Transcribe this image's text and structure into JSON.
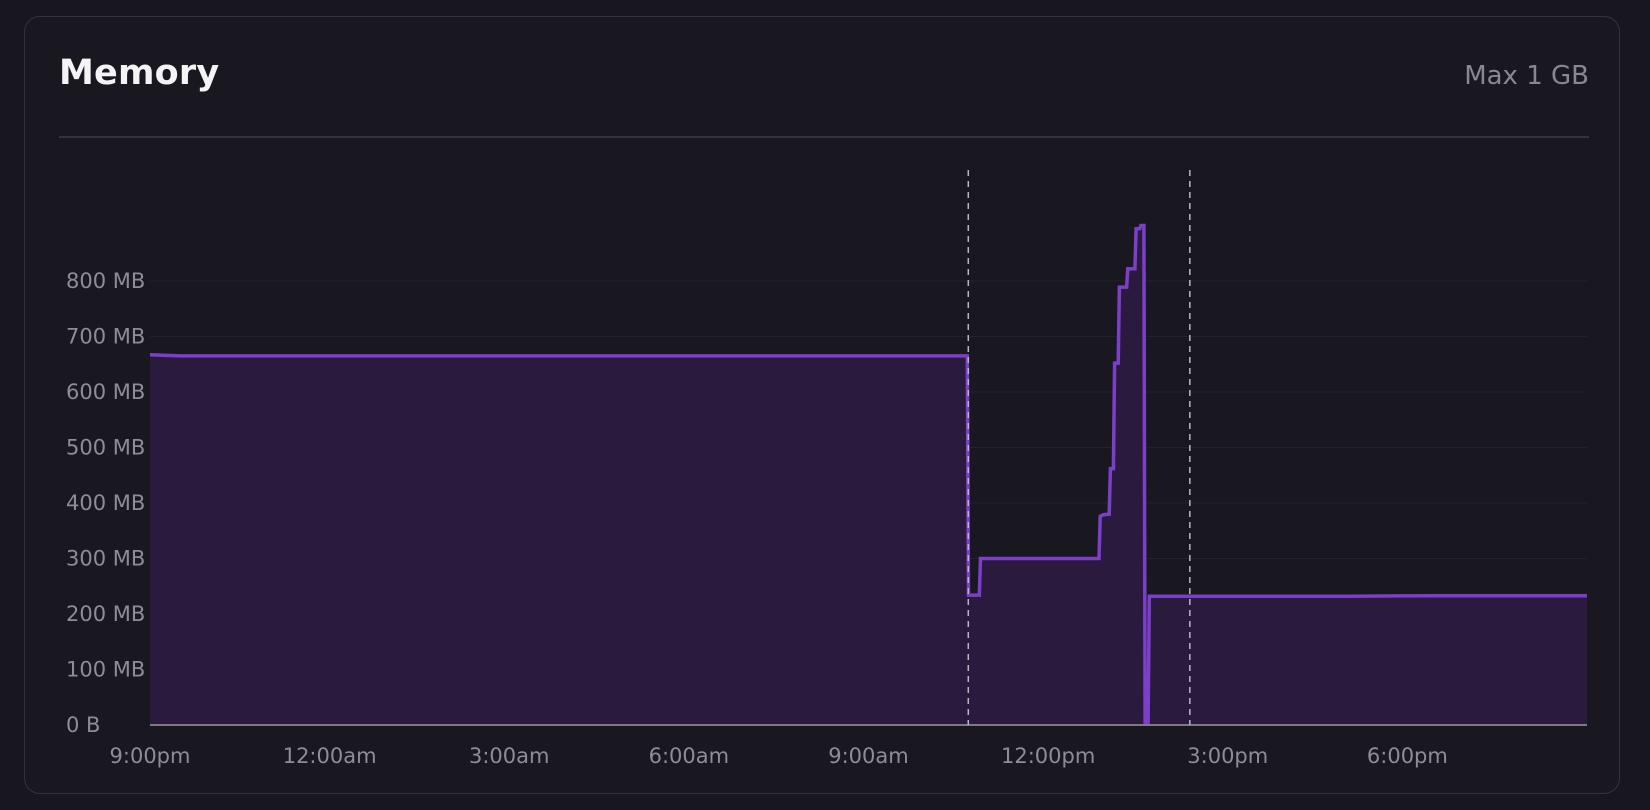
{
  "header": {
    "title": "Memory",
    "max_label": "Max 1 GB"
  },
  "colors": {
    "background": "#18171f",
    "line": "#7c3fc8",
    "fill": "#2a1a3e",
    "grid": "#23222b",
    "event_marker": "#b9b6c2"
  },
  "chart_data": {
    "type": "area",
    "title": "Memory",
    "subtitle": "Max 1 GB",
    "xlabel": "",
    "ylabel": "",
    "ylim": [
      0,
      1000
    ],
    "y_unit": "MB",
    "xlim": [
      "9:00pm",
      "8:00pm"
    ],
    "x_unit": "hours since 9:00pm",
    "grid": true,
    "legend": "none",
    "x_ticks": [
      "9:00pm",
      "12:00am",
      "3:00am",
      "6:00am",
      "9:00am",
      "12:00pm",
      "3:00pm",
      "6:00pm"
    ],
    "y_ticks": [
      "0 B",
      "100 MB",
      "200 MB",
      "300 MB",
      "400 MB",
      "500 MB",
      "600 MB",
      "700 MB",
      "800 MB"
    ],
    "events": [
      "10:40am",
      "2:22pm"
    ],
    "series": [
      {
        "values": [
          [
            0,
            667
          ],
          [
            0.5,
            665
          ],
          [
            13.65,
            665
          ],
          [
            13.67,
            234
          ],
          [
            13.85,
            234
          ],
          [
            13.87,
            300
          ],
          [
            15.85,
            300
          ],
          [
            15.87,
            376
          ],
          [
            15.92,
            379
          ],
          [
            16.02,
            380
          ],
          [
            16.04,
            462
          ],
          [
            16.09,
            462
          ],
          [
            16.11,
            652
          ],
          [
            16.17,
            652
          ],
          [
            16.19,
            789
          ],
          [
            16.31,
            789
          ],
          [
            16.33,
            822
          ],
          [
            16.45,
            822
          ],
          [
            16.47,
            894
          ],
          [
            16.53,
            894
          ],
          [
            16.55,
            900
          ],
          [
            16.6,
            900
          ],
          [
            16.62,
            5
          ],
          [
            16.67,
            5
          ],
          [
            16.69,
            232
          ],
          [
            20,
            232
          ],
          [
            21.5,
            233
          ],
          [
            24,
            233
          ]
        ]
      }
    ]
  }
}
